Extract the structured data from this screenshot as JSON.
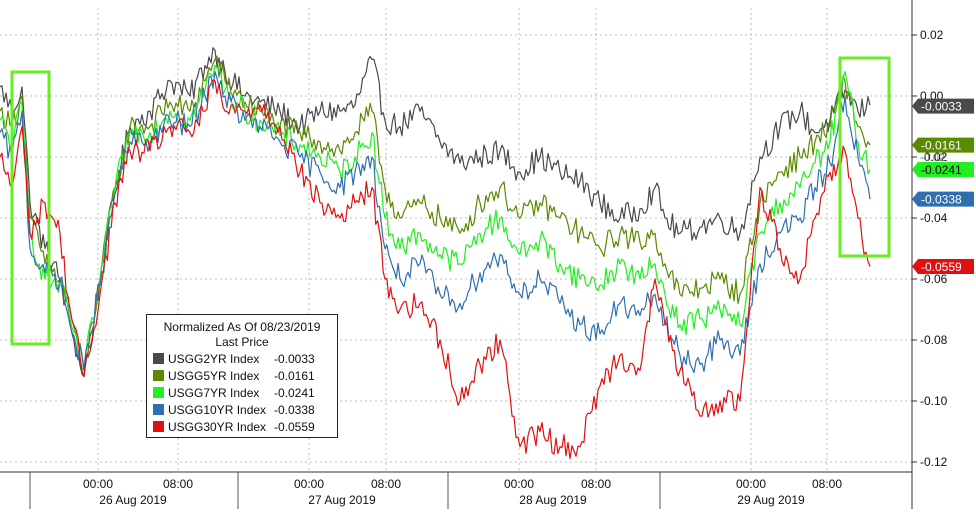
{
  "chart_data": {
    "type": "line",
    "title": "Normalized As Of 08/23/2019",
    "subtitle": "Last Price",
    "y_axis": {
      "ylim": [
        -0.125,
        0.035
      ],
      "ticks": [
        0.02,
        0.0,
        -0.02,
        -0.04,
        -0.06,
        -0.08,
        -0.1,
        -0.12
      ],
      "tick_labels": [
        "0.02",
        "0.00",
        "-0.02",
        "-0.04",
        "-0.06",
        "-0.08",
        "-0.10",
        "-0.12"
      ],
      "side": "right"
    },
    "x_axis": {
      "time_labels": [
        "00:00",
        "08:00",
        "00:00",
        "08:00",
        "00:00",
        "08:00",
        "00:00",
        "08:00"
      ],
      "day_labels": [
        "26 Aug 2019",
        "27 Aug 2019",
        "28 Aug 2019",
        "29 Aug 2019"
      ]
    },
    "grid": true,
    "legend_position": "bottom-left",
    "series": [
      {
        "name": "USGG2YR Index",
        "last": "-0.0033",
        "color": "#4a4a4a",
        "label_bg": "#4a4a4a",
        "label_fg": "#ffffff",
        "anchors": [
          [
            0,
            0.003
          ],
          [
            12,
            -0.005
          ],
          [
            22,
            0.003
          ],
          [
            30,
            -0.035
          ],
          [
            45,
            -0.05
          ],
          [
            60,
            -0.06
          ],
          [
            70,
            -0.075
          ],
          [
            84,
            -0.092
          ],
          [
            100,
            -0.06
          ],
          [
            115,
            -0.03
          ],
          [
            130,
            -0.01
          ],
          [
            150,
            -0.005
          ],
          [
            170,
            0.005
          ],
          [
            190,
            0.0
          ],
          [
            205,
            0.01
          ],
          [
            215,
            0.015
          ],
          [
            225,
            0.008
          ],
          [
            245,
            0.0
          ],
          [
            260,
            -0.002
          ],
          [
            280,
            -0.005
          ],
          [
            300,
            -0.01
          ],
          [
            320,
            -0.005
          ],
          [
            340,
            -0.005
          ],
          [
            355,
            -0.003
          ],
          [
            372,
            0.012
          ],
          [
            385,
            -0.008
          ],
          [
            400,
            -0.01
          ],
          [
            420,
            -0.005
          ],
          [
            440,
            -0.015
          ],
          [
            460,
            -0.022
          ],
          [
            480,
            -0.02
          ],
          [
            500,
            -0.018
          ],
          [
            520,
            -0.025
          ],
          [
            540,
            -0.02
          ],
          [
            560,
            -0.025
          ],
          [
            580,
            -0.028
          ],
          [
            600,
            -0.035
          ],
          [
            620,
            -0.04
          ],
          [
            640,
            -0.037
          ],
          [
            655,
            -0.03
          ],
          [
            665,
            -0.04
          ],
          [
            680,
            -0.045
          ],
          [
            700,
            -0.043
          ],
          [
            720,
            -0.04
          ],
          [
            740,
            -0.045
          ],
          [
            760,
            -0.02
          ],
          [
            780,
            -0.01
          ],
          [
            800,
            -0.005
          ],
          [
            815,
            -0.012
          ],
          [
            830,
            -0.008
          ],
          [
            845,
            0.002
          ],
          [
            858,
            -0.005
          ],
          [
            870,
            -0.003
          ]
        ]
      },
      {
        "name": "USGG5YR Index",
        "last": "-0.0161",
        "color": "#5a8a00",
        "label_bg": "#5a8a00",
        "label_fg": "#ffffff",
        "anchors": [
          [
            0,
            -0.005
          ],
          [
            12,
            -0.01
          ],
          [
            22,
            0.0
          ],
          [
            30,
            -0.04
          ],
          [
            45,
            -0.055
          ],
          [
            60,
            -0.06
          ],
          [
            70,
            -0.07
          ],
          [
            84,
            -0.09
          ],
          [
            100,
            -0.06
          ],
          [
            115,
            -0.03
          ],
          [
            130,
            -0.01
          ],
          [
            150,
            -0.01
          ],
          [
            170,
            -0.002
          ],
          [
            190,
            -0.005
          ],
          [
            205,
            0.005
          ],
          [
            215,
            0.012
          ],
          [
            225,
            0.005
          ],
          [
            245,
            -0.002
          ],
          [
            260,
            -0.005
          ],
          [
            280,
            -0.01
          ],
          [
            300,
            -0.012
          ],
          [
            320,
            -0.015
          ],
          [
            340,
            -0.018
          ],
          [
            355,
            -0.012
          ],
          [
            372,
            -0.005
          ],
          [
            385,
            -0.03
          ],
          [
            400,
            -0.04
          ],
          [
            420,
            -0.035
          ],
          [
            440,
            -0.04
          ],
          [
            460,
            -0.045
          ],
          [
            480,
            -0.035
          ],
          [
            500,
            -0.03
          ],
          [
            520,
            -0.04
          ],
          [
            540,
            -0.035
          ],
          [
            560,
            -0.04
          ],
          [
            580,
            -0.045
          ],
          [
            600,
            -0.05
          ],
          [
            620,
            -0.045
          ],
          [
            640,
            -0.048
          ],
          [
            655,
            -0.045
          ],
          [
            665,
            -0.055
          ],
          [
            680,
            -0.065
          ],
          [
            700,
            -0.063
          ],
          [
            720,
            -0.06
          ],
          [
            740,
            -0.065
          ],
          [
            760,
            -0.035
          ],
          [
            780,
            -0.025
          ],
          [
            800,
            -0.02
          ],
          [
            815,
            -0.015
          ],
          [
            830,
            -0.01
          ],
          [
            845,
            0.005
          ],
          [
            858,
            -0.01
          ],
          [
            870,
            -0.0161
          ]
        ]
      },
      {
        "name": "USGG7YR Index",
        "last": "-0.0241",
        "color": "#22ee22",
        "label_bg": "#22ee22",
        "label_fg": "#000000",
        "anchors": [
          [
            0,
            -0.008
          ],
          [
            12,
            -0.015
          ],
          [
            22,
            -0.003
          ],
          [
            30,
            -0.045
          ],
          [
            45,
            -0.06
          ],
          [
            60,
            -0.062
          ],
          [
            70,
            -0.073
          ],
          [
            84,
            -0.09
          ],
          [
            100,
            -0.06
          ],
          [
            115,
            -0.03
          ],
          [
            130,
            -0.012
          ],
          [
            150,
            -0.012
          ],
          [
            170,
            -0.005
          ],
          [
            190,
            -0.008
          ],
          [
            205,
            0.002
          ],
          [
            215,
            0.01
          ],
          [
            225,
            0.002
          ],
          [
            245,
            -0.005
          ],
          [
            260,
            -0.008
          ],
          [
            280,
            -0.013
          ],
          [
            300,
            -0.016
          ],
          [
            320,
            -0.02
          ],
          [
            340,
            -0.025
          ],
          [
            355,
            -0.02
          ],
          [
            372,
            -0.012
          ],
          [
            385,
            -0.04
          ],
          [
            400,
            -0.05
          ],
          [
            420,
            -0.045
          ],
          [
            440,
            -0.052
          ],
          [
            460,
            -0.055
          ],
          [
            480,
            -0.045
          ],
          [
            500,
            -0.04
          ],
          [
            520,
            -0.052
          ],
          [
            540,
            -0.047
          ],
          [
            560,
            -0.055
          ],
          [
            580,
            -0.06
          ],
          [
            600,
            -0.062
          ],
          [
            620,
            -0.055
          ],
          [
            640,
            -0.06
          ],
          [
            655,
            -0.055
          ],
          [
            665,
            -0.065
          ],
          [
            680,
            -0.075
          ],
          [
            700,
            -0.073
          ],
          [
            720,
            -0.07
          ],
          [
            740,
            -0.075
          ],
          [
            760,
            -0.045
          ],
          [
            780,
            -0.035
          ],
          [
            800,
            -0.03
          ],
          [
            815,
            -0.022
          ],
          [
            830,
            -0.015
          ],
          [
            845,
            0.008
          ],
          [
            858,
            -0.015
          ],
          [
            870,
            -0.0241
          ]
        ]
      },
      {
        "name": "USGG10YR Index",
        "last": "-0.0338",
        "color": "#2f6fb0",
        "label_bg": "#2f6fb0",
        "label_fg": "#ffffff",
        "anchors": [
          [
            0,
            -0.012
          ],
          [
            12,
            -0.02
          ],
          [
            22,
            -0.005
          ],
          [
            30,
            -0.05
          ],
          [
            45,
            -0.058
          ],
          [
            60,
            -0.06
          ],
          [
            70,
            -0.075
          ],
          [
            84,
            -0.09
          ],
          [
            100,
            -0.062
          ],
          [
            115,
            -0.032
          ],
          [
            130,
            -0.015
          ],
          [
            150,
            -0.015
          ],
          [
            170,
            -0.008
          ],
          [
            190,
            -0.01
          ],
          [
            205,
            0.0
          ],
          [
            215,
            0.008
          ],
          [
            225,
            0.0
          ],
          [
            245,
            -0.008
          ],
          [
            260,
            -0.01
          ],
          [
            280,
            -0.015
          ],
          [
            300,
            -0.02
          ],
          [
            320,
            -0.025
          ],
          [
            340,
            -0.03
          ],
          [
            355,
            -0.025
          ],
          [
            372,
            -0.02
          ],
          [
            385,
            -0.05
          ],
          [
            400,
            -0.06
          ],
          [
            420,
            -0.055
          ],
          [
            440,
            -0.065
          ],
          [
            460,
            -0.068
          ],
          [
            480,
            -0.058
          ],
          [
            500,
            -0.052
          ],
          [
            520,
            -0.065
          ],
          [
            540,
            -0.06
          ],
          [
            560,
            -0.068
          ],
          [
            580,
            -0.075
          ],
          [
            600,
            -0.078
          ],
          [
            620,
            -0.068
          ],
          [
            640,
            -0.072
          ],
          [
            655,
            -0.065
          ],
          [
            665,
            -0.075
          ],
          [
            680,
            -0.085
          ],
          [
            700,
            -0.088
          ],
          [
            720,
            -0.08
          ],
          [
            740,
            -0.085
          ],
          [
            760,
            -0.055
          ],
          [
            780,
            -0.045
          ],
          [
            800,
            -0.04
          ],
          [
            815,
            -0.03
          ],
          [
            830,
            -0.022
          ],
          [
            845,
            0.0
          ],
          [
            858,
            -0.02
          ],
          [
            870,
            -0.0338
          ]
        ]
      },
      {
        "name": "USGG30YR Index",
        "last": "-0.0559",
        "color": "#e01010",
        "label_bg": "#e01010",
        "label_fg": "#ffffff",
        "anchors": [
          [
            0,
            -0.02
          ],
          [
            12,
            -0.03
          ],
          [
            22,
            -0.01
          ],
          [
            30,
            -0.045
          ],
          [
            45,
            -0.035
          ],
          [
            60,
            -0.045
          ],
          [
            70,
            -0.07
          ],
          [
            84,
            -0.092
          ],
          [
            100,
            -0.065
          ],
          [
            115,
            -0.035
          ],
          [
            130,
            -0.018
          ],
          [
            150,
            -0.018
          ],
          [
            170,
            -0.01
          ],
          [
            190,
            -0.012
          ],
          [
            205,
            -0.005
          ],
          [
            215,
            0.005
          ],
          [
            225,
            -0.005
          ],
          [
            245,
            -0.005
          ],
          [
            260,
            -0.003
          ],
          [
            280,
            -0.01
          ],
          [
            300,
            -0.025
          ],
          [
            320,
            -0.035
          ],
          [
            340,
            -0.04
          ],
          [
            355,
            -0.035
          ],
          [
            372,
            -0.03
          ],
          [
            385,
            -0.06
          ],
          [
            400,
            -0.07
          ],
          [
            420,
            -0.068
          ],
          [
            440,
            -0.08
          ],
          [
            460,
            -0.1
          ],
          [
            480,
            -0.088
          ],
          [
            500,
            -0.08
          ],
          [
            520,
            -0.115
          ],
          [
            540,
            -0.11
          ],
          [
            560,
            -0.115
          ],
          [
            580,
            -0.115
          ],
          [
            600,
            -0.095
          ],
          [
            620,
            -0.085
          ],
          [
            640,
            -0.09
          ],
          [
            655,
            -0.06
          ],
          [
            665,
            -0.075
          ],
          [
            680,
            -0.09
          ],
          [
            700,
            -0.105
          ],
          [
            720,
            -0.1
          ],
          [
            740,
            -0.1
          ],
          [
            760,
            -0.03
          ],
          [
            780,
            -0.05
          ],
          [
            800,
            -0.06
          ],
          [
            815,
            -0.04
          ],
          [
            830,
            -0.025
          ],
          [
            845,
            -0.018
          ],
          [
            858,
            -0.04
          ],
          [
            870,
            -0.0559
          ]
        ]
      }
    ]
  },
  "legend": {
    "title": "Normalized As Of 08/23/2019",
    "subtitle": "Last Price",
    "rows": [
      {
        "name": "USGG2YR Index",
        "value": "-0.0033"
      },
      {
        "name": "USGG5YR Index",
        "value": "-0.0161"
      },
      {
        "name": "USGG7YR Index",
        "value": "-0.0241"
      },
      {
        "name": "USGG10YR Index",
        "value": "-0.0338"
      },
      {
        "name": "USGG30YR Index",
        "value": "-0.0559"
      }
    ]
  },
  "highlight_color": "#66ee22",
  "extra_axis_label": "-0.02"
}
